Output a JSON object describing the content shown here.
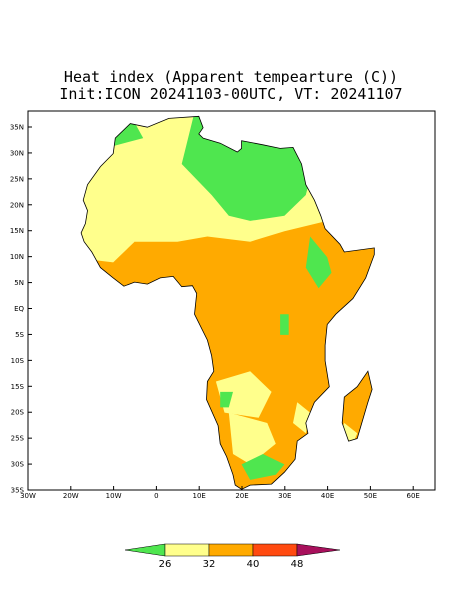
{
  "title": {
    "line1": "Heat index (Apparent tempearture (C))",
    "line2": "Init:ICON 20241103-00UTC, VT: 20241107"
  },
  "lat_labels": [
    "35N",
    "30N",
    "25N",
    "20N",
    "15N",
    "10N",
    "5N",
    "EQ",
    "5S",
    "10S",
    "15S",
    "20S",
    "25S",
    "30S",
    "35S"
  ],
  "lon_labels": [
    "30W",
    "20W",
    "10W",
    "0",
    "10E",
    "20E",
    "30E",
    "40E",
    "50E",
    "60E"
  ],
  "colorbar": {
    "labels": [
      "26",
      "32",
      "40",
      "48"
    ],
    "colors": [
      "#4fe64f",
      "#ffff8c",
      "#ffaa00",
      "#ff4a10",
      "#a8105c"
    ]
  }
}
